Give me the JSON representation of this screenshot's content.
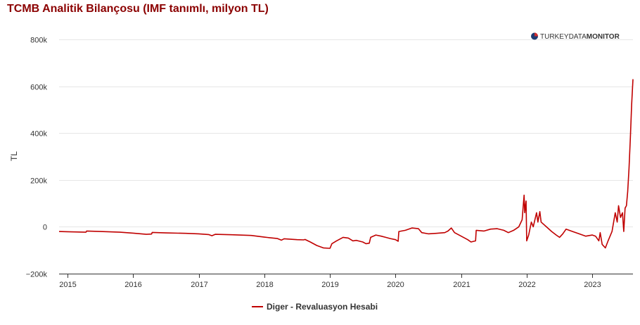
{
  "chart_data": {
    "type": "line",
    "title": "TCMB Analitik Bilançosu (IMF tanımlı, milyon TL)",
    "ylabel": "TL",
    "xlabel": "",
    "ylim": [
      -200000,
      800000
    ],
    "xlim": [
      2014.87,
      2023.62
    ],
    "y_ticks": [
      {
        "value": 800000,
        "label": "800k"
      },
      {
        "value": 600000,
        "label": "600k"
      },
      {
        "value": 400000,
        "label": "400k"
      },
      {
        "value": 200000,
        "label": "200k"
      },
      {
        "value": 0,
        "label": "0"
      },
      {
        "value": -200000,
        "label": "−200k"
      }
    ],
    "x_ticks": [
      {
        "value": 2015,
        "label": "2015"
      },
      {
        "value": 2016,
        "label": "2016"
      },
      {
        "value": 2017,
        "label": "2017"
      },
      {
        "value": 2018,
        "label": "2018"
      },
      {
        "value": 2019,
        "label": "2019"
      },
      {
        "value": 2020,
        "label": "2020"
      },
      {
        "value": 2021,
        "label": "2021"
      },
      {
        "value": 2022,
        "label": "2022"
      },
      {
        "value": 2023,
        "label": "2023"
      }
    ],
    "grid": true,
    "legend_position": "bottom-center",
    "series": [
      {
        "name": "Diger - Revaluasyon Hesabi",
        "color": "#c00000",
        "points": [
          [
            2014.87,
            -20000
          ],
          [
            2015.0,
            -21000
          ],
          [
            2015.28,
            -23000
          ],
          [
            2015.29,
            -18000
          ],
          [
            2015.5,
            -20000
          ],
          [
            2015.8,
            -23000
          ],
          [
            2016.0,
            -27000
          ],
          [
            2016.2,
            -32000
          ],
          [
            2016.28,
            -31000
          ],
          [
            2016.29,
            -24000
          ],
          [
            2016.5,
            -26000
          ],
          [
            2016.8,
            -28000
          ],
          [
            2017.0,
            -30000
          ],
          [
            2017.15,
            -33000
          ],
          [
            2017.2,
            -38000
          ],
          [
            2017.25,
            -32000
          ],
          [
            2017.5,
            -34000
          ],
          [
            2017.8,
            -37000
          ],
          [
            2018.0,
            -44000
          ],
          [
            2018.2,
            -50000
          ],
          [
            2018.26,
            -57000
          ],
          [
            2018.3,
            -51000
          ],
          [
            2018.5,
            -55000
          ],
          [
            2018.6,
            -56000
          ],
          [
            2018.62,
            -54000
          ],
          [
            2018.7,
            -65000
          ],
          [
            2018.8,
            -80000
          ],
          [
            2018.9,
            -90000
          ],
          [
            2019.0,
            -92000
          ],
          [
            2019.03,
            -72000
          ],
          [
            2019.1,
            -60000
          ],
          [
            2019.2,
            -45000
          ],
          [
            2019.28,
            -48000
          ],
          [
            2019.35,
            -60000
          ],
          [
            2019.4,
            -58000
          ],
          [
            2019.5,
            -65000
          ],
          [
            2019.55,
            -72000
          ],
          [
            2019.6,
            -70000
          ],
          [
            2019.62,
            -45000
          ],
          [
            2019.7,
            -35000
          ],
          [
            2019.78,
            -40000
          ],
          [
            2019.85,
            -45000
          ],
          [
            2019.92,
            -50000
          ],
          [
            2020.0,
            -55000
          ],
          [
            2020.04,
            -62000
          ],
          [
            2020.05,
            -20000
          ],
          [
            2020.15,
            -15000
          ],
          [
            2020.25,
            -5000
          ],
          [
            2020.35,
            -8000
          ],
          [
            2020.4,
            -25000
          ],
          [
            2020.5,
            -30000
          ],
          [
            2020.62,
            -28000
          ],
          [
            2020.75,
            -25000
          ],
          [
            2020.8,
            -18000
          ],
          [
            2020.85,
            -5000
          ],
          [
            2020.9,
            -25000
          ],
          [
            2021.0,
            -40000
          ],
          [
            2021.1,
            -55000
          ],
          [
            2021.15,
            -65000
          ],
          [
            2021.22,
            -60000
          ],
          [
            2021.23,
            -15000
          ],
          [
            2021.35,
            -18000
          ],
          [
            2021.45,
            -10000
          ],
          [
            2021.55,
            -8000
          ],
          [
            2021.65,
            -15000
          ],
          [
            2021.72,
            -25000
          ],
          [
            2021.8,
            -15000
          ],
          [
            2021.88,
            0
          ],
          [
            2021.93,
            30000
          ],
          [
            2021.96,
            135000
          ],
          [
            2021.97,
            60000
          ],
          [
            2021.99,
            110000
          ],
          [
            2022.0,
            -60000
          ],
          [
            2022.03,
            -35000
          ],
          [
            2022.07,
            20000
          ],
          [
            2022.1,
            0
          ],
          [
            2022.15,
            60000
          ],
          [
            2022.17,
            20000
          ],
          [
            2022.2,
            65000
          ],
          [
            2022.22,
            20000
          ],
          [
            2022.3,
            0
          ],
          [
            2022.38,
            -20000
          ],
          [
            2022.45,
            -35000
          ],
          [
            2022.5,
            -45000
          ],
          [
            2022.55,
            -30000
          ],
          [
            2022.6,
            -10000
          ],
          [
            2022.7,
            -20000
          ],
          [
            2022.8,
            -30000
          ],
          [
            2022.9,
            -40000
          ],
          [
            2023.0,
            -35000
          ],
          [
            2023.05,
            -40000
          ],
          [
            2023.1,
            -60000
          ],
          [
            2023.12,
            -25000
          ],
          [
            2023.15,
            -75000
          ],
          [
            2023.2,
            -90000
          ],
          [
            2023.24,
            -60000
          ],
          [
            2023.3,
            -20000
          ],
          [
            2023.35,
            60000
          ],
          [
            2023.38,
            20000
          ],
          [
            2023.4,
            90000
          ],
          [
            2023.43,
            40000
          ],
          [
            2023.46,
            60000
          ],
          [
            2023.48,
            -20000
          ],
          [
            2023.5,
            80000
          ],
          [
            2023.52,
            90000
          ],
          [
            2023.54,
            150000
          ],
          [
            2023.56,
            250000
          ],
          [
            2023.58,
            380000
          ],
          [
            2023.6,
            520000
          ],
          [
            2023.62,
            630000
          ]
        ]
      }
    ],
    "watermark": {
      "prefix": "TURKEY",
      "middle": "DATA",
      "suffix": "MONITOR"
    }
  }
}
